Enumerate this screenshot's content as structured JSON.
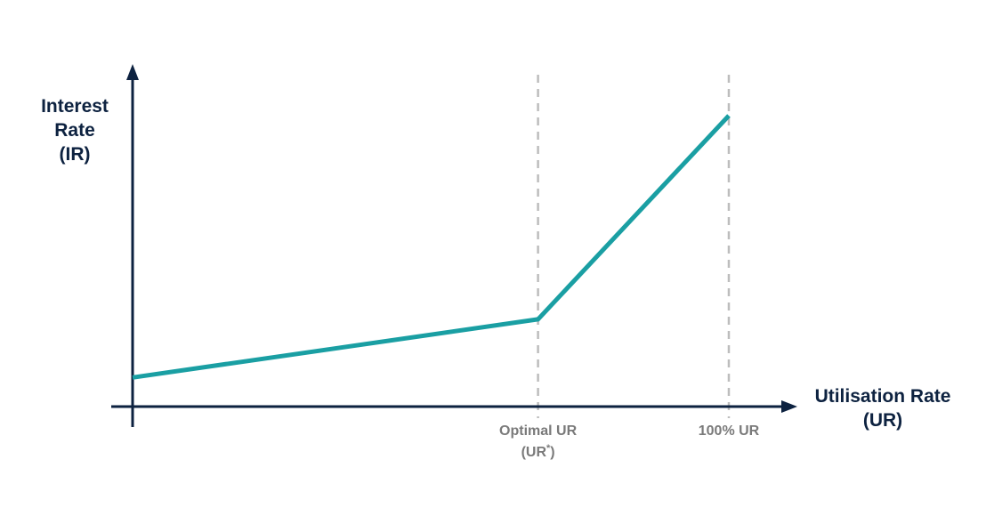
{
  "chart_data": {
    "type": "line",
    "title": "",
    "ylabel_lines": [
      "Interest",
      "Rate",
      "(IR)"
    ],
    "xlabel_lines": [
      "Utilisation Rate",
      "(UR)"
    ],
    "ticks": [
      {
        "x": 0.68,
        "line1": "Optimal UR",
        "line2_prefix": "(UR",
        "line2_sup": "*",
        "line2_suffix": ")"
      },
      {
        "x": 1.0,
        "line1": "100% UR"
      }
    ],
    "series": [
      {
        "x": [
          0,
          0.68,
          1.0
        ],
        "y": [
          0.1,
          0.3,
          1.0
        ]
      }
    ],
    "xlim": [
      0,
      1.0
    ],
    "ylim": [
      0,
      1.0
    ],
    "grid": false,
    "colors": {
      "line": "#1a9fa3",
      "axis": "#0d2240",
      "reference_line": "#bdbdbd",
      "tick_text": "#7a7a7a",
      "axis_title": "#0d2240"
    }
  }
}
